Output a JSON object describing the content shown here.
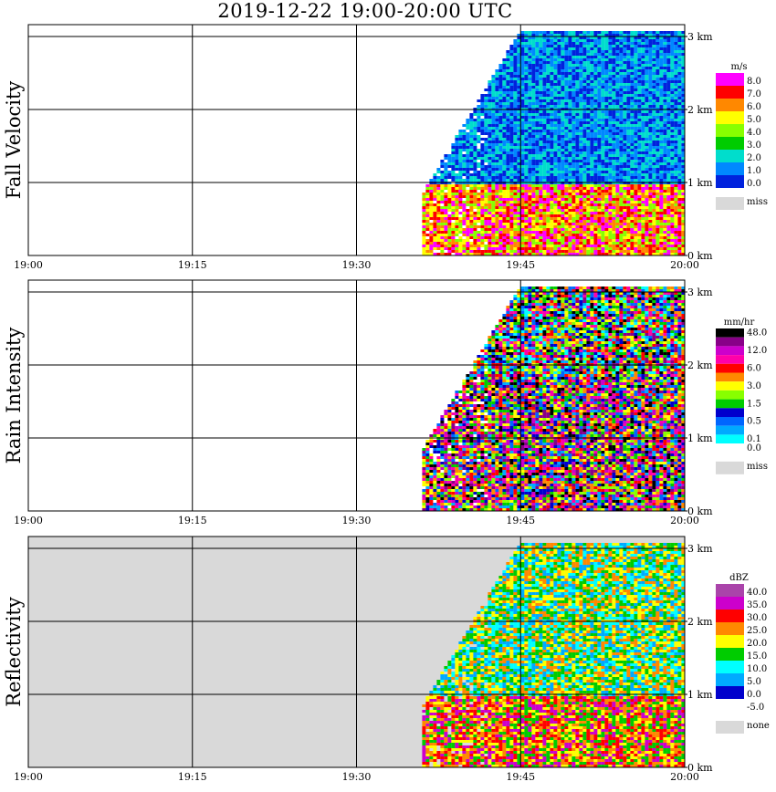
{
  "title": "2019-12-22   19:00-20:00 UTC",
  "x_ticks": [
    "19:00",
    "19:15",
    "19:30",
    "19:45",
    "20:00"
  ],
  "y_ticks": [
    "0 km",
    "1 km",
    "2 km",
    "3 km"
  ],
  "chart_data": [
    {
      "type": "heatmap",
      "title": "Fall Velocity",
      "unit": "m/s",
      "x": [
        "19:00",
        "19:15",
        "19:30",
        "19:45",
        "20:00"
      ],
      "y": [
        "0 km",
        "1 km",
        "2 km",
        "3 km"
      ],
      "legend": [
        {
          "label": "8.0",
          "color": "#ff00ff"
        },
        {
          "label": "7.0",
          "color": "#ff0000"
        },
        {
          "label": "6.0",
          "color": "#ff8800"
        },
        {
          "label": "5.0",
          "color": "#ffff00"
        },
        {
          "label": "4.0",
          "color": "#88ff00"
        },
        {
          "label": "3.0",
          "color": "#00cc00"
        },
        {
          "label": "2.0",
          "color": "#00ddcc"
        },
        {
          "label": "1.0",
          "color": "#0088ff"
        },
        {
          "label": "0.0",
          "color": "#0022dd"
        }
      ],
      "missing": {
        "label": "miss",
        "color": "#d9d9d9"
      },
      "background": "#ffffff",
      "echo_start": "19:36",
      "echo_end": "20:00",
      "echo_top_km": 3.1
    },
    {
      "type": "heatmap",
      "title": "Rain Intensity",
      "unit": "mm/hr",
      "x": [
        "19:00",
        "19:15",
        "19:30",
        "19:45",
        "20:00"
      ],
      "y": [
        "0 km",
        "1 km",
        "2 km",
        "3 km"
      ],
      "legend": [
        {
          "label": "48.0",
          "color": "#000000"
        },
        {
          "label": "",
          "color": "#880088"
        },
        {
          "label": "12.0",
          "color": "#cc00cc"
        },
        {
          "label": "",
          "color": "#ff00aa"
        },
        {
          "label": "6.0",
          "color": "#ff0000"
        },
        {
          "label": "",
          "color": "#ff8800"
        },
        {
          "label": "3.0",
          "color": "#ffff00"
        },
        {
          "label": "",
          "color": "#88ff00"
        },
        {
          "label": "1.5",
          "color": "#00cc00"
        },
        {
          "label": "",
          "color": "#0000cc"
        },
        {
          "label": "0.5",
          "color": "#0066ff"
        },
        {
          "label": "",
          "color": "#00aaff"
        },
        {
          "label": "0.1",
          "color": "#00ffff"
        },
        {
          "label": "0.0",
          "color": "#ffffff"
        }
      ],
      "missing": {
        "label": "miss",
        "color": "#d9d9d9"
      },
      "background": "#ffffff",
      "echo_start": "19:36",
      "echo_end": "20:00",
      "echo_top_km": 3.1
    },
    {
      "type": "heatmap",
      "title": "Reflectivity",
      "unit": "dBZ",
      "x": [
        "19:00",
        "19:15",
        "19:30",
        "19:45",
        "20:00"
      ],
      "y": [
        "0 km",
        "1 km",
        "2 km",
        "3 km"
      ],
      "legend": [
        {
          "label": "40.0",
          "color": "#aa44aa"
        },
        {
          "label": "35.0",
          "color": "#cc00cc"
        },
        {
          "label": "30.0",
          "color": "#ff0000"
        },
        {
          "label": "25.0",
          "color": "#ff8800"
        },
        {
          "label": "20.0",
          "color": "#ffff00"
        },
        {
          "label": "15.0",
          "color": "#00cc00"
        },
        {
          "label": "10.0",
          "color": "#00ffff"
        },
        {
          "label": "5.0",
          "color": "#00aaff"
        },
        {
          "label": "0.0",
          "color": "#0000cc"
        },
        {
          "label": "-5.0",
          "color": "#ffffff"
        }
      ],
      "missing": {
        "label": "none",
        "color": "#d9d9d9"
      },
      "background": "#d9d9d9",
      "echo_start": "19:36",
      "echo_end": "20:00",
      "echo_top_km": 3.1
    }
  ]
}
